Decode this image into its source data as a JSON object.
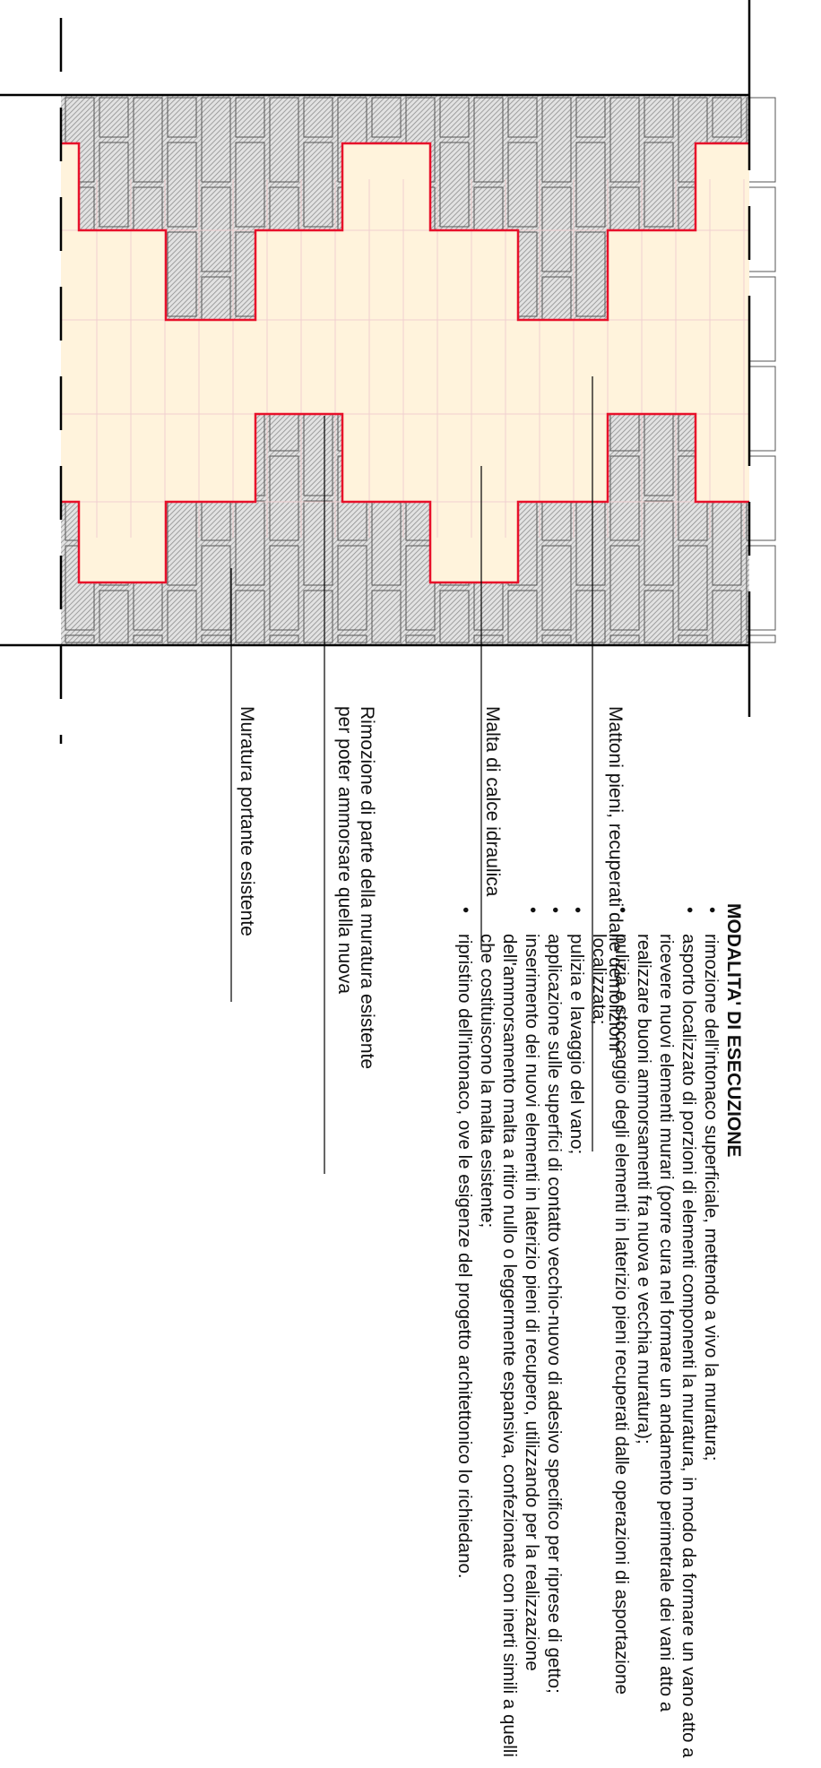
{
  "labels": {
    "mattoni": "Mattoni pieni, recuperati dalle demolizioni",
    "malta": "Malta di calce idraulica",
    "rimozione_line1": "Rimozione di parte della muratura esistente",
    "rimozione_line2": "per poter ammorsare quella nuova",
    "muratura": "Muratura portante esistente"
  },
  "notes": {
    "title": "MODALITA' DI ESECUZIONE",
    "items": [
      "rimozione dell'intonaco superficiale, mettendo a vivo la muratura;",
      "asporto localizzato di porzioni di elementi componenti la muratura, in modo da formare un vano atto a ricevere nuovi elementi murari (porre cura nel formare un andamento perimetrale dei vani atto a realizzare buoni ammorsamenti fra nuova e vecchia muratura);",
      "pulizia e stoccaggio degli elementi in laterizio pieni recuperati dalle operazioni di asportazione localizzata;",
      "pulizia e lavaggio del vano;",
      "applicazione sulle superfici di contatto vecchio-nuovo di adesivo specifico per riprese di getto;",
      "inserimento dei nuovi elementi in laterizio pieni di recupero, utilizzando per la realizzazione dell'ammorsamento malta a ritiro nullo o leggermente espansiva, confezionate con inerti simili a quelli che costituiscono la malta esistente;",
      "ripristino dell'intonaco, ove le esigenze del progetto architettonico lo richiedano."
    ]
  },
  "colors": {
    "existing_wall_hatch": "#9a9a9a",
    "new_brick_fill": "#fff3dc",
    "new_brick_outline": "#e8102a",
    "line": "#000000"
  }
}
